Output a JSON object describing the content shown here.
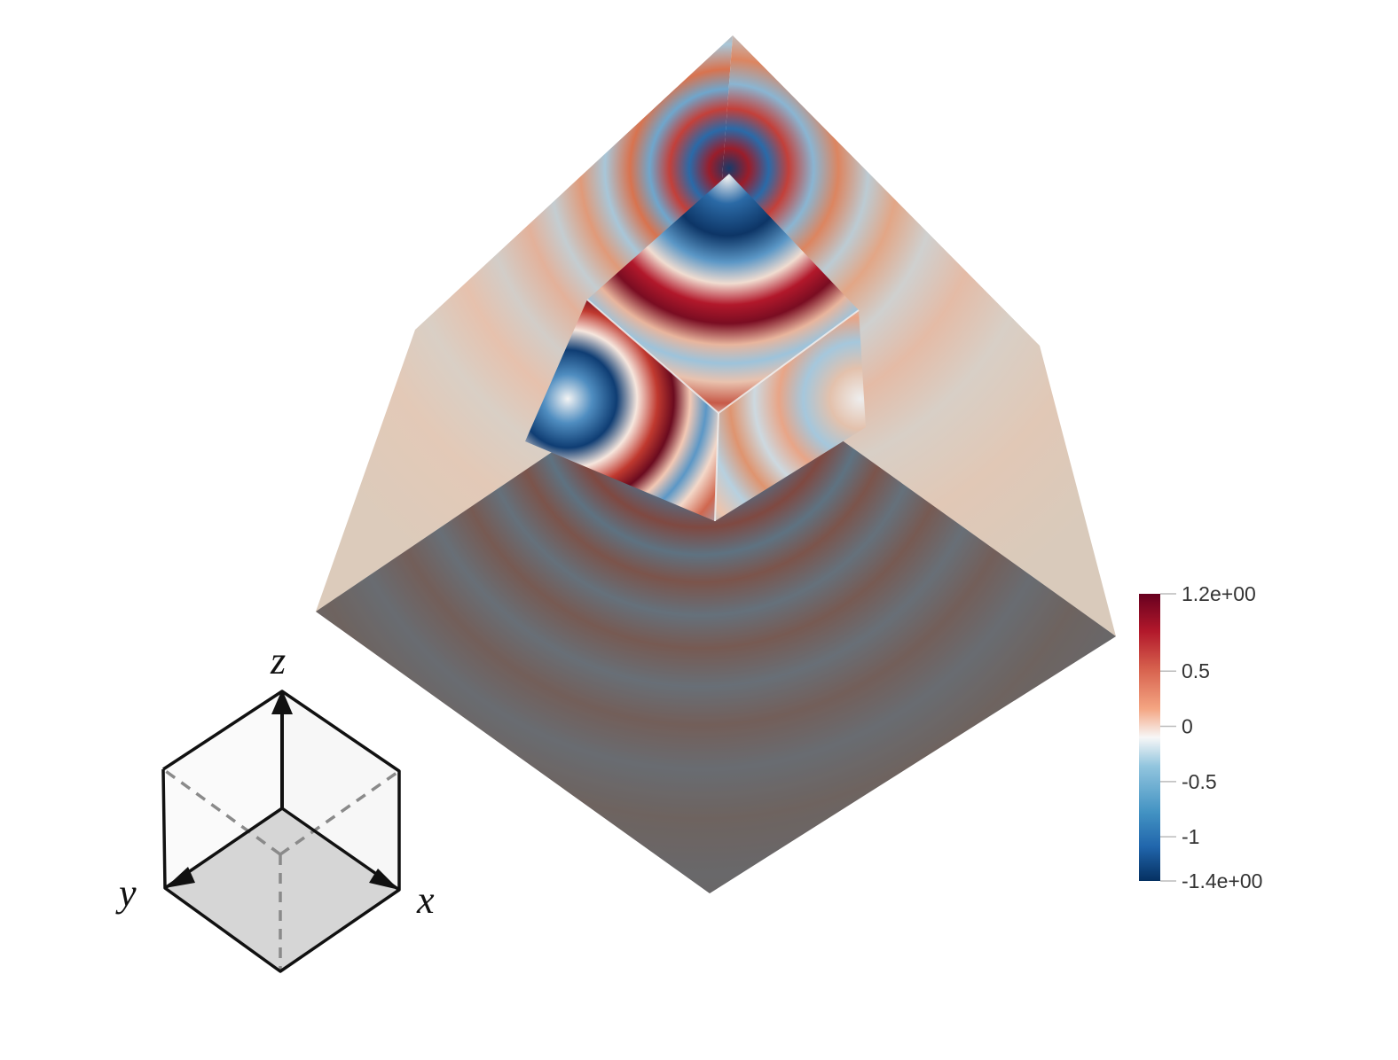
{
  "colorbar": {
    "labels": [
      "1.2e+00",
      "0.5",
      "0",
      "-0.5",
      "-1",
      "-1.4e+00"
    ],
    "values": [
      1.2,
      0.5,
      0,
      -0.5,
      -1,
      -1.4
    ],
    "range": [
      -1.4,
      1.2
    ],
    "colors": {
      "max": "#67001f",
      "positive": "#d6604d",
      "zero": "#f7f7f7",
      "negative": "#4393c3",
      "min": "#053061"
    }
  },
  "axes": {
    "x": "x",
    "y": "y",
    "z": "z"
  },
  "surface": {
    "shadow_face_color": "#6b6868",
    "side_face_color": "#d8c8b8"
  }
}
